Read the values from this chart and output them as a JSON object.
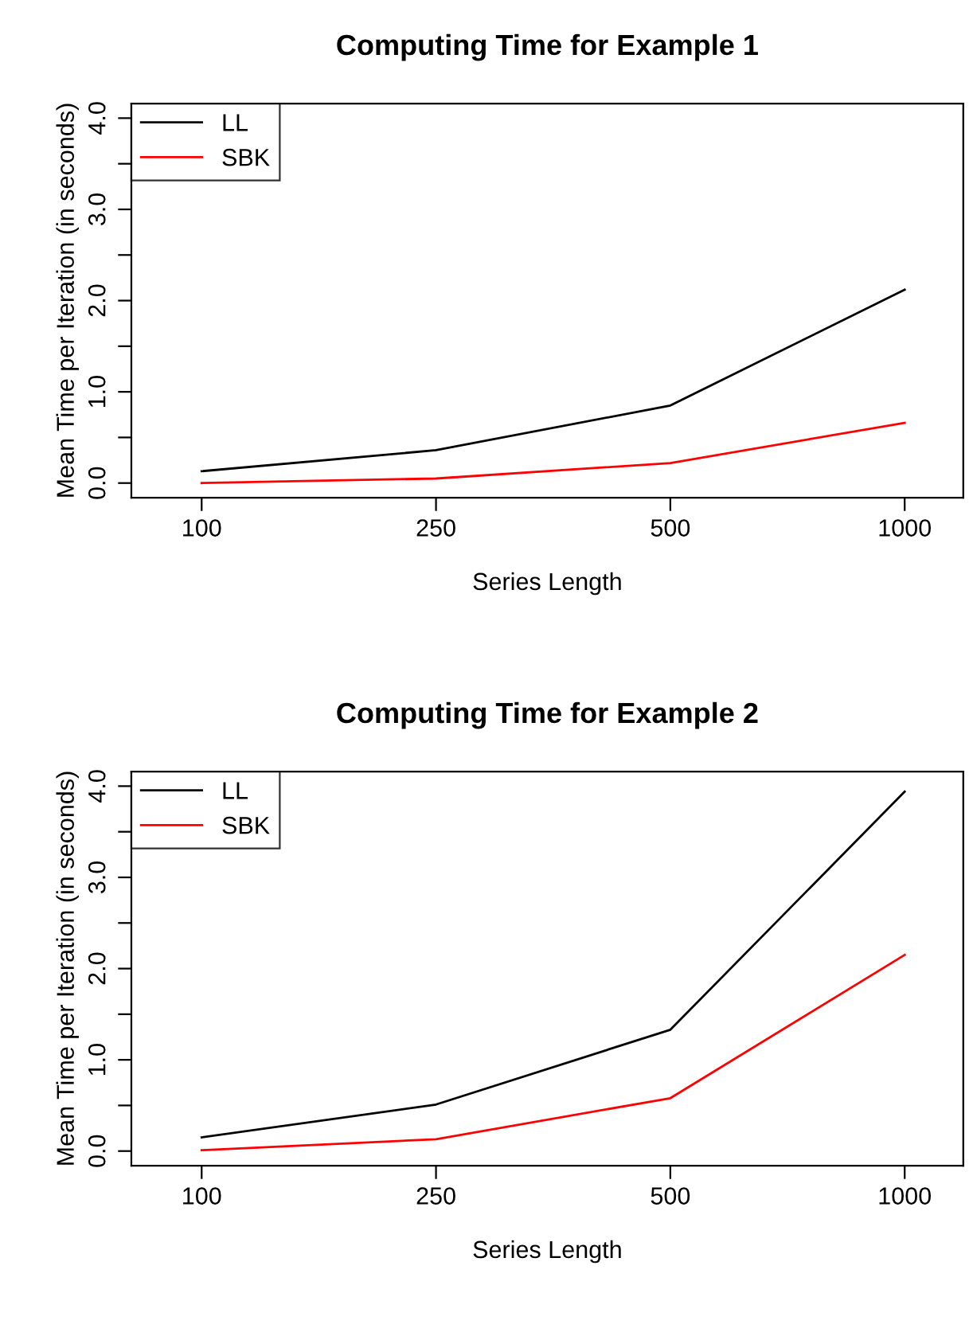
{
  "chart_data": [
    {
      "type": "line",
      "title": "Computing Time for Example 1",
      "xlabel": "Series Length",
      "ylabel": "Mean Time per Iteration (in seconds)",
      "categories": [
        "100",
        "250",
        "500",
        "1000"
      ],
      "series": [
        {
          "name": "LL",
          "color": "#000000",
          "values": [
            0.13,
            0.36,
            0.85,
            2.12
          ]
        },
        {
          "name": "SBK",
          "color": "#ff0000",
          "values": [
            0.0,
            0.05,
            0.22,
            0.66
          ]
        }
      ],
      "ylim": [
        -0.16,
        4.16
      ],
      "yticks": [
        {
          "value": 0,
          "label": "0.0"
        },
        {
          "value": 0.5,
          "label": null
        },
        {
          "value": 1,
          "label": "1.0"
        },
        {
          "value": 1.5,
          "label": null
        },
        {
          "value": 2,
          "label": "2.0"
        },
        {
          "value": 2.5,
          "label": null
        },
        {
          "value": 3,
          "label": "3.0"
        },
        {
          "value": 3.5,
          "label": null
        },
        {
          "value": 4,
          "label": "4.0"
        }
      ],
      "legend": "top left",
      "grid": false,
      "marker": "none",
      "line_style": "solid"
    },
    {
      "type": "line",
      "title": "Computing Time for Example 2",
      "xlabel": "Series Length",
      "ylabel": "Mean Time per Iteration (in seconds)",
      "categories": [
        "100",
        "250",
        "500",
        "1000"
      ],
      "series": [
        {
          "name": "LL",
          "color": "#000000",
          "values": [
            0.15,
            0.51,
            1.33,
            3.94
          ]
        },
        {
          "name": "SBK",
          "color": "#ff0000",
          "values": [
            0.01,
            0.13,
            0.58,
            2.15
          ]
        }
      ],
      "ylim": [
        -0.16,
        4.16
      ],
      "yticks": [
        {
          "value": 0,
          "label": "0.0"
        },
        {
          "value": 0.5,
          "label": null
        },
        {
          "value": 1,
          "label": "1.0"
        },
        {
          "value": 1.5,
          "label": null
        },
        {
          "value": 2,
          "label": "2.0"
        },
        {
          "value": 2.5,
          "label": null
        },
        {
          "value": 3,
          "label": "3.0"
        },
        {
          "value": 3.5,
          "label": null
        },
        {
          "value": 4,
          "label": "4.0"
        }
      ],
      "legend": "top left",
      "grid": false,
      "marker": "none",
      "line_style": "solid"
    }
  ]
}
